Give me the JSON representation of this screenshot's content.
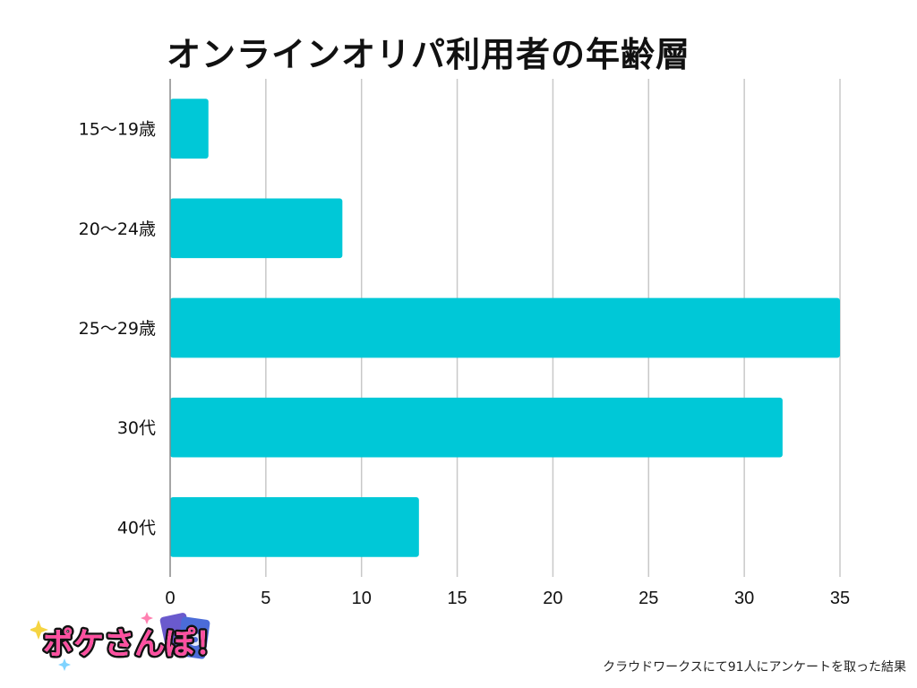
{
  "chart_data": {
    "type": "bar",
    "orientation": "horizontal",
    "title": "オンラインオリパ利用者の年齢層",
    "categories": [
      "15～19歳",
      "20～24歳",
      "25～29歳",
      "30代",
      "40代"
    ],
    "values": [
      2,
      9,
      35,
      32,
      13
    ],
    "xlim": [
      0,
      35
    ],
    "xticks": [
      0,
      5,
      10,
      15,
      20,
      25,
      30,
      35
    ],
    "xlabel": "",
    "ylabel": "",
    "grid": "vertical",
    "legend": "none",
    "bar_color": "#00c8d7",
    "grid_color": "#c8c8c8"
  },
  "logo_text": "ポケさんぽ！",
  "footnote": "クラウドワークスにて91人にアンケートを取った結果"
}
